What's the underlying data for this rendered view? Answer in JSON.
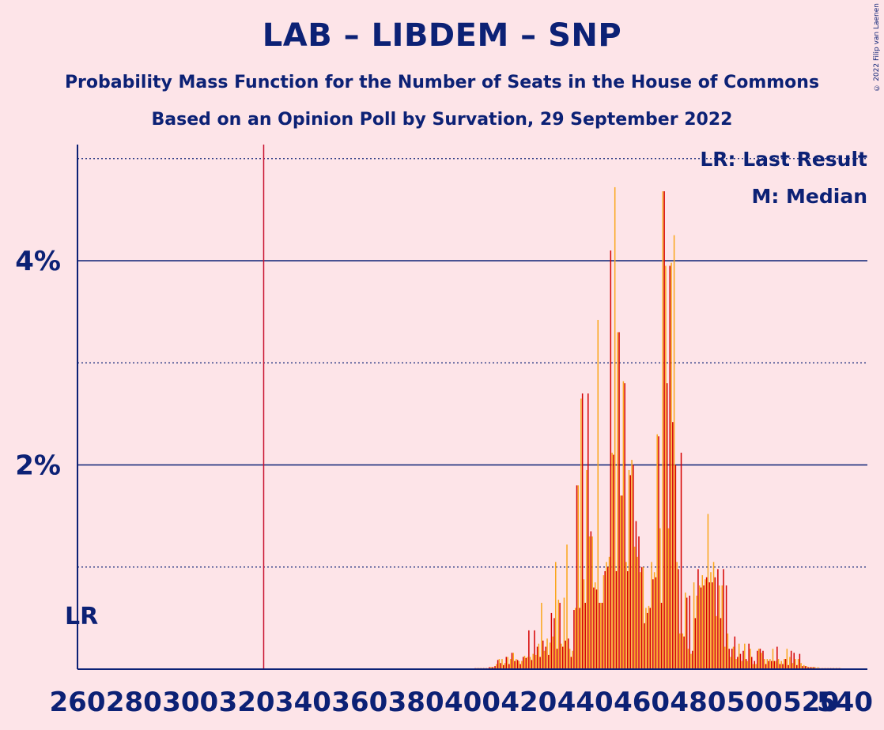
{
  "title": "LAB – LIBDEM – SNP",
  "subtitle": "Probability Mass Function for the Number of Seats in the House of Commons",
  "subtitle2": "Based on an Opinion Poll by Survation, 29 September 2022",
  "copyright": "© 2022 Filip van Laenen",
  "legend": {
    "lr": "LR: Last Result",
    "m": "M: Median"
  },
  "lr_marker": "LR",
  "colors": {
    "background": "#fde4e8",
    "text": "#0c2175",
    "lab": "#d50000",
    "libdem": "#faa61a",
    "lr_line": "#c8102e"
  },
  "chart_data": {
    "type": "bar",
    "title": "LAB – LIBDEM – SNP",
    "xlabel": "",
    "ylabel": "",
    "xlim": [
      260,
      540
    ],
    "ylim": [
      0,
      5.15
    ],
    "x_ticks": [
      260,
      280,
      300,
      320,
      340,
      360,
      380,
      400,
      420,
      440,
      460,
      480,
      500,
      520,
      540
    ],
    "y_ticks": [
      {
        "value": 2,
        "label": "2%"
      },
      {
        "value": 4,
        "label": "4%"
      }
    ],
    "y_grid_minor": [
      1,
      3,
      5
    ],
    "last_result": 326,
    "series": [
      {
        "name": "",
        "color": "#d50000",
        "x": [
          401,
          402,
          403,
          404,
          405,
          406,
          407,
          408,
          409,
          410,
          411,
          412,
          413,
          414,
          415,
          416,
          417,
          418,
          419,
          420,
          421,
          422,
          423,
          424,
          425,
          426,
          427,
          428,
          429,
          430,
          431,
          432,
          433,
          434,
          435,
          436,
          437,
          438,
          439,
          440,
          441,
          442,
          443,
          444,
          445,
          446,
          447,
          448,
          449,
          450,
          451,
          452,
          453,
          454,
          455,
          456,
          457,
          458,
          459,
          460,
          461,
          462,
          463,
          464,
          465,
          466,
          467,
          468,
          469,
          470,
          471,
          472,
          473,
          474,
          475,
          476,
          477,
          478,
          479,
          480,
          481,
          482,
          483,
          484,
          485,
          486,
          487,
          488,
          489,
          490,
          491,
          492,
          493,
          494,
          495,
          496,
          497,
          498,
          499,
          500,
          501,
          502,
          503,
          504,
          505,
          506,
          507,
          508,
          509,
          510,
          511,
          512,
          513,
          514,
          515,
          516,
          517,
          518,
          519,
          520,
          521,
          522,
          523,
          524,
          525,
          526,
          527,
          528,
          529,
          530
        ],
        "values": [
          0.01,
          0.01,
          0.01,
          0.01,
          0.01,
          0.02,
          0.02,
          0.03,
          0.09,
          0.06,
          0.04,
          0.12,
          0.05,
          0.16,
          0.08,
          0.09,
          0.05,
          0.12,
          0.11,
          0.38,
          0.09,
          0.38,
          0.22,
          0.12,
          0.28,
          0.22,
          0.14,
          0.55,
          0.5,
          0.2,
          0.65,
          0.22,
          0.28,
          0.3,
          0.12,
          0.58,
          1.8,
          0.6,
          2.7,
          0.65,
          2.7,
          1.35,
          0.8,
          0.78,
          0.65,
          0.65,
          0.96,
          1.0,
          4.1,
          2.1,
          0.96,
          3.3,
          1.7,
          2.8,
          0.96,
          1.9,
          2.0,
          1.45,
          1.3,
          1.0,
          0.45,
          0.55,
          0.6,
          0.88,
          0.9,
          2.28,
          0.65,
          4.68,
          2.8,
          3.95,
          2.42,
          2.0,
          0.98,
          2.12,
          0.32,
          0.7,
          0.72,
          0.18,
          0.5,
          0.98,
          0.8,
          0.82,
          0.9,
          0.85,
          0.85,
          0.9,
          0.98,
          0.5,
          0.98,
          0.82,
          0.2,
          0.2,
          0.32,
          0.12,
          0.15,
          0.18,
          0.1,
          0.25,
          0.12,
          0.08,
          0.18,
          0.2,
          0.18,
          0.05,
          0.08,
          0.08,
          0.08,
          0.22,
          0.05,
          0.05,
          0.1,
          0.04,
          0.18,
          0.16,
          0.04,
          0.15,
          0.03,
          0.03,
          0.02,
          0.02,
          0.02,
          0.01,
          0.01,
          0.01,
          0.01,
          0.01,
          0.01,
          0.01,
          0.01,
          0.01
        ]
      },
      {
        "name": "",
        "color": "#faa61a",
        "x": [
          401.5,
          402.5,
          403.5,
          404.5,
          405.5,
          406.5,
          407.5,
          408.5,
          409.5,
          410.5,
          411.5,
          412.5,
          413.5,
          414.5,
          415.5,
          416.5,
          417.5,
          418.5,
          419.5,
          420.5,
          421.5,
          422.5,
          423.5,
          424.5,
          425.5,
          426.5,
          427.5,
          428.5,
          429.5,
          430.5,
          431.5,
          432.5,
          433.5,
          434.5,
          435.5,
          436.5,
          437.5,
          438.5,
          439.5,
          440.5,
          441.5,
          442.5,
          443.5,
          444.5,
          445.5,
          446.5,
          447.5,
          448.5,
          449.5,
          450.5,
          451.5,
          452.5,
          453.5,
          454.5,
          455.5,
          456.5,
          457.5,
          458.5,
          459.5,
          460.5,
          461.5,
          462.5,
          463.5,
          464.5,
          465.5,
          466.5,
          467.5,
          468.5,
          469.5,
          470.5,
          471.5,
          472.5,
          473.5,
          474.5,
          475.5,
          476.5,
          477.5,
          478.5,
          479.5,
          480.5,
          481.5,
          482.5,
          483.5,
          484.5,
          485.5,
          486.5,
          487.5,
          488.5,
          489.5,
          490.5,
          491.5,
          492.5,
          493.5,
          494.5,
          495.5,
          496.5,
          497.5,
          498.5,
          499.5,
          500.5,
          501.5,
          502.5,
          503.5,
          504.5,
          505.5,
          506.5,
          507.5,
          508.5,
          509.5,
          510.5,
          511.5,
          512.5,
          513.5,
          514.5,
          515.5,
          516.5,
          517.5,
          518.5,
          519.5,
          520.5,
          521.5,
          522.5,
          523.5,
          524.5,
          525.5,
          526.5,
          527.5,
          528.5,
          529.5,
          530.5
        ],
        "values": [
          0.01,
          0.01,
          0.01,
          0.01,
          0.01,
          0.02,
          0.02,
          0.05,
          0.1,
          0.1,
          0.06,
          0.12,
          0.1,
          0.16,
          0.1,
          0.08,
          0.08,
          0.13,
          0.12,
          0.12,
          0.15,
          0.14,
          0.25,
          0.65,
          0.18,
          0.3,
          0.26,
          0.32,
          1.05,
          0.68,
          0.25,
          0.7,
          1.22,
          0.2,
          0.18,
          0.6,
          1.8,
          2.65,
          0.88,
          1.95,
          1.3,
          1.3,
          0.85,
          3.42,
          0.65,
          0.92,
          1.05,
          1.1,
          2.12,
          4.72,
          3.3,
          1.7,
          2.82,
          1.05,
          1.95,
          2.05,
          1.2,
          1.1,
          0.95,
          1.0,
          0.6,
          0.62,
          1.05,
          0.95,
          2.3,
          1.38,
          4.68,
          3.95,
          1.38,
          3.98,
          4.25,
          1.05,
          0.35,
          0.35,
          0.75,
          0.2,
          0.15,
          0.85,
          0.72,
          0.82,
          0.92,
          0.88,
          1.52,
          0.95,
          1.05,
          0.52,
          0.82,
          0.82,
          0.22,
          0.35,
          0.12,
          0.22,
          0.1,
          0.25,
          0.08,
          0.25,
          0.08,
          0.2,
          0.05,
          0.05,
          0.2,
          0.16,
          0.1,
          0.1,
          0.1,
          0.2,
          0.08,
          0.1,
          0.08,
          0.1,
          0.2,
          0.12,
          0.06,
          0.1,
          0.1,
          0.06,
          0.04,
          0.03,
          0.02,
          0.02,
          0.02,
          0.02,
          0.01,
          0.01,
          0.01,
          0.01,
          0.01,
          0.01,
          0.01,
          0.01
        ]
      }
    ]
  }
}
